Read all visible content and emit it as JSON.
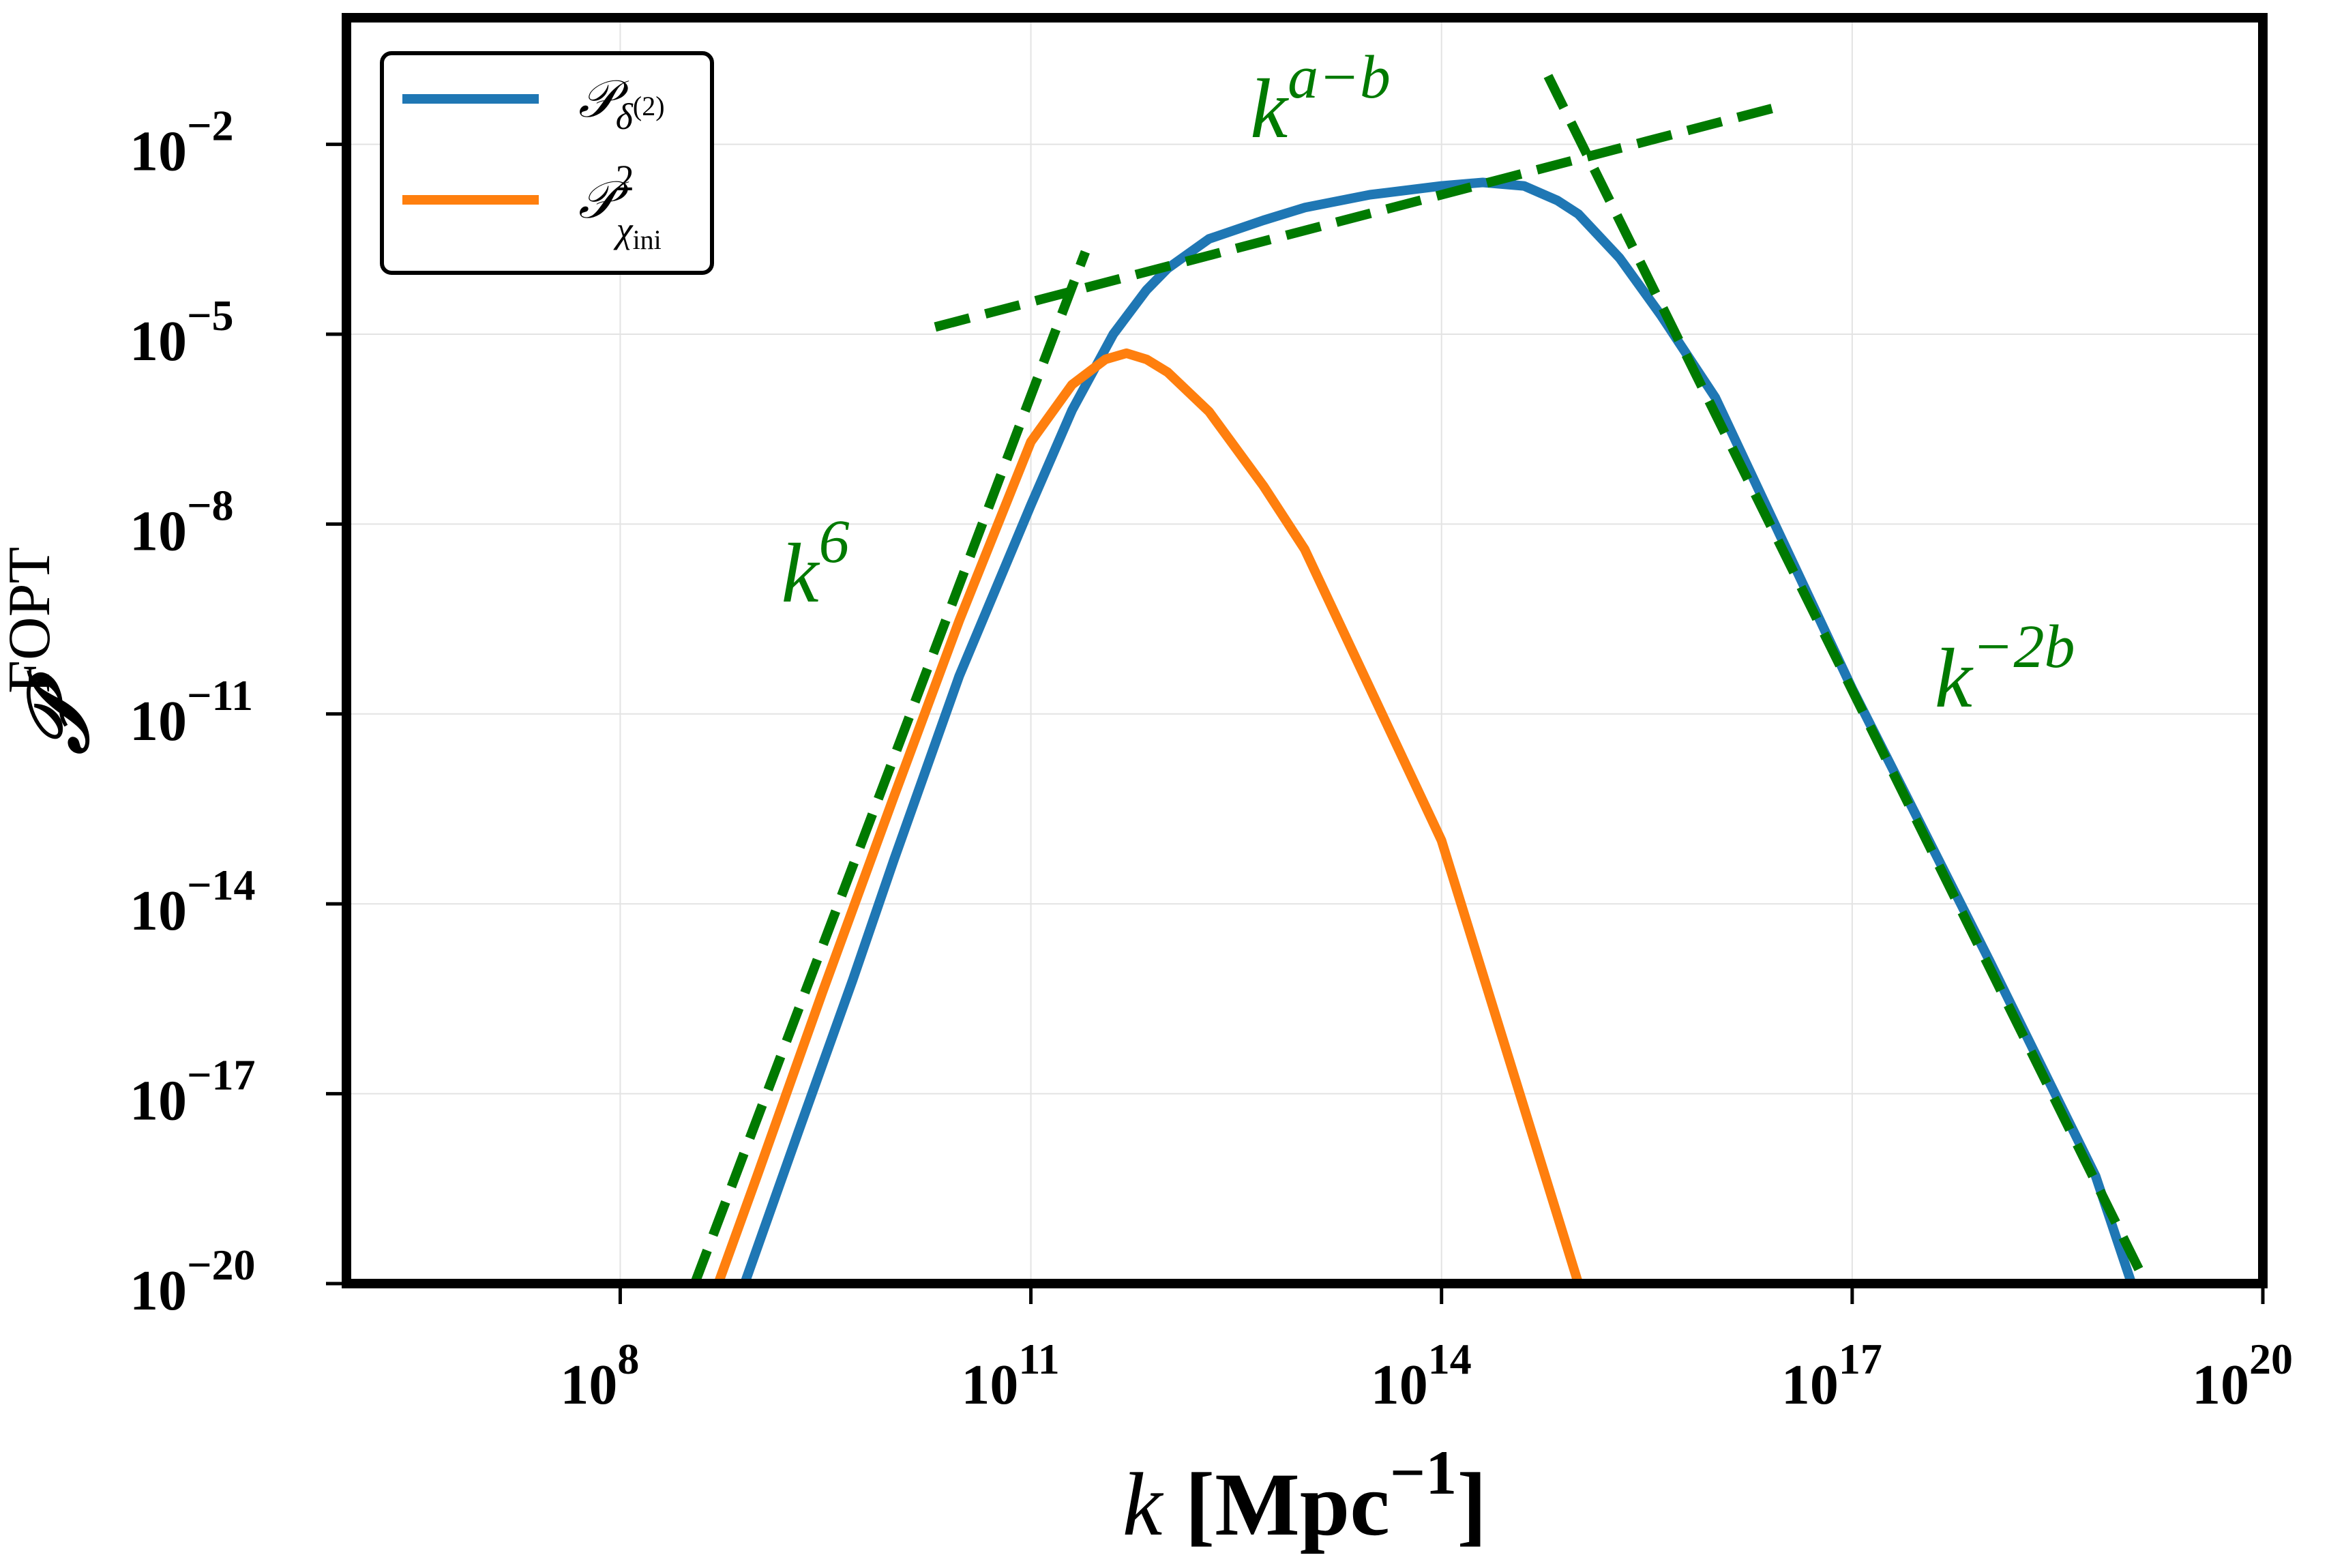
{
  "chart_data": {
    "type": "line",
    "xscale": "log",
    "yscale": "log",
    "xlim": [
      1000000.0,
      1e+20
    ],
    "ylim": [
      1e-20,
      1.0
    ],
    "grid": true,
    "legend_position": "top-left",
    "title": "",
    "xlabel": {
      "var": "k",
      "unit": "[Mpc",
      "exp": "−1",
      "close": "]"
    },
    "ylabel": {
      "base": "𝒫",
      "sup": "FOPT"
    },
    "xticks": [
      {
        "value": 100000000.0,
        "base": "10",
        "exp": "8"
      },
      {
        "value": 100000000000.0,
        "base": "10",
        "exp": "11"
      },
      {
        "value": 100000000000000.0,
        "base": "10",
        "exp": "14"
      },
      {
        "value": 1e+17,
        "base": "10",
        "exp": "17"
      },
      {
        "value": 1e+20,
        "base": "10",
        "exp": "20"
      }
    ],
    "yticks": [
      {
        "value": 0.01,
        "base": "10",
        "exp": "−2"
      },
      {
        "value": 1e-05,
        "base": "10",
        "exp": "−5"
      },
      {
        "value": 1e-08,
        "base": "10",
        "exp": "−8"
      },
      {
        "value": 1e-11,
        "base": "10",
        "exp": "−11"
      },
      {
        "value": 1e-14,
        "base": "10",
        "exp": "−14"
      },
      {
        "value": 1e-17,
        "base": "10",
        "exp": "−17"
      },
      {
        "value": 1e-20,
        "base": "10",
        "exp": "−20"
      }
    ],
    "series": [
      {
        "name_base": "𝒫",
        "name_sub": "δ",
        "name_subsup": "(2)",
        "name_sup": "",
        "color": "#1f77b4",
        "points": [
          [
            810000000.0,
            1e-20
          ],
          [
            2000000000.0,
            2.5e-18
          ],
          [
            5000000000.0,
            6.3e-16
          ],
          [
            10000000000.0,
            5e-14
          ],
          [
            30000000000.0,
            4e-11
          ],
          [
            100000000000.0,
            2e-08
          ],
          [
            200000000000.0,
            6.3e-07
          ],
          [
            400000000000.0,
            1e-05
          ],
          [
            700000000000.0,
            5e-05
          ],
          [
            1000000000000.0,
            0.00011
          ],
          [
            2000000000000.0,
            0.00032
          ],
          [
            5000000000000.0,
            0.00063
          ],
          [
            10000000000000.0,
            0.001
          ],
          [
            30000000000000.0,
            0.0016
          ],
          [
            100000000000000.0,
            0.0022
          ],
          [
            200000000000000.0,
            0.0025
          ],
          [
            400000000000000.0,
            0.0022
          ],
          [
            700000000000000.0,
            0.0013
          ],
          [
            1000000000000000.0,
            0.00079
          ],
          [
            2000000000000000.0,
            0.00016
          ],
          [
            4000000000000000.0,
            2e-05
          ],
          [
            1e+16,
            1e-06
          ],
          [
            1e+17,
            2.5e-11
          ],
          [
            1e+18,
            1.3e-15
          ],
          [
            6e+18,
            5e-19
          ],
          [
            1.1e+19,
            1e-20
          ]
        ]
      },
      {
        "name_base": "𝒫",
        "name_sub": "χ",
        "name_subsup": "ini",
        "name_sup": "2",
        "color": "#ff7f0e",
        "points": [
          [
            520000000.0,
            1e-20
          ],
          [
            1000000000.0,
            5e-19
          ],
          [
            3000000000.0,
            4e-16
          ],
          [
            10000000000.0,
            5e-13
          ],
          [
            30000000000.0,
            3e-10
          ],
          [
            100000000000.0,
            2e-07
          ],
          [
            200000000000.0,
            1.6e-06
          ],
          [
            350000000000.0,
            4e-06
          ],
          [
            500000000000.0,
            5e-06
          ],
          [
            700000000000.0,
            4e-06
          ],
          [
            1000000000000.0,
            2.5e-06
          ],
          [
            2000000000000.0,
            6e-07
          ],
          [
            5000000000000.0,
            4e-08
          ],
          [
            10000000000000.0,
            4e-09
          ],
          [
            100000000000000.0,
            1e-13
          ],
          [
            1000000000000000.0,
            1e-20
          ]
        ]
      }
    ],
    "asymptotes": [
      {
        "label_base": "k",
        "label_exp": "6",
        "label_at": [
          1500000000.0,
          6e-10
        ],
        "color": "#007a00",
        "points": [
          [
            350000000.0,
            1e-20
          ],
          [
            250000000000.0,
            0.0002
          ]
        ]
      },
      {
        "label_base": "k",
        "label_exp": "a−b",
        "label_at": [
          4000000000000.0,
          0.013
        ],
        "color": "#007a00",
        "points": [
          [
            20000000000.0,
            1.3e-05
          ],
          [
            3e+16,
            0.04
          ]
        ]
      },
      {
        "label_base": "k",
        "label_exp": "−2b",
        "label_at": [
          4e+17,
          1.3e-11
        ],
        "color": "#007a00",
        "points": [
          [
            600000000000000.0,
            0.12
          ],
          [
            1.4e+19,
            1e-20
          ]
        ]
      }
    ]
  }
}
